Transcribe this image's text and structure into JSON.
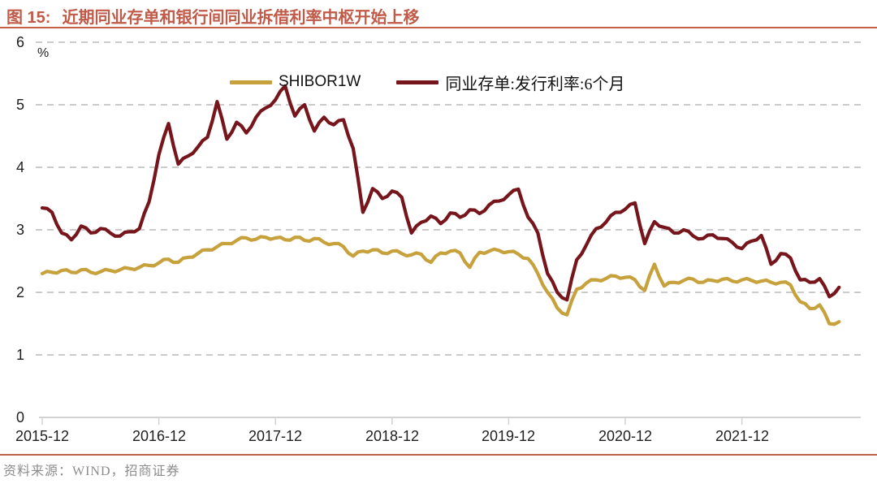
{
  "header": {
    "figure_label": "图 15:",
    "title": "近期同业存单和银行间同业拆借利率中枢开始上移"
  },
  "footer": {
    "source": "资料来源：WIND，招商证券"
  },
  "colors": {
    "accent": "#c15a48",
    "rule": "#c3604a",
    "shibor_line": "#c6a13c",
    "ncd_line": "#76151b",
    "gridline": "#cbcbcb",
    "axis_line": "#d2d2d2",
    "tick_text": "#1f1f1f",
    "source_text": "#8c8c8c"
  },
  "chart_data": {
    "type": "line",
    "title": "近期同业存单和银行间同业拆借利率中枢开始上移",
    "xlabel": "",
    "ylabel": "%",
    "unit": "%",
    "ylim": [
      0,
      6
    ],
    "yticks": [
      "0",
      "1",
      "2",
      "3",
      "4",
      "5",
      "6"
    ],
    "xticks": [
      "2015-12",
      "2016-12",
      "2017-12",
      "2018-12",
      "2019-12",
      "2020-12",
      "2021-12"
    ],
    "x_start": "2015-12",
    "x_end": "2022-10",
    "x_step_months": 1,
    "grid": "horizontal-dashed",
    "legend_position": "top-center",
    "series": [
      {
        "name": "SHIBOR1W",
        "color": "#c6a13c",
        "values": [
          2.3,
          2.32,
          2.35,
          2.32,
          2.36,
          2.32,
          2.33,
          2.35,
          2.36,
          2.38,
          2.4,
          2.43,
          2.47,
          2.53,
          2.48,
          2.56,
          2.62,
          2.68,
          2.73,
          2.78,
          2.83,
          2.87,
          2.85,
          2.88,
          2.87,
          2.84,
          2.88,
          2.83,
          2.86,
          2.8,
          2.78,
          2.73,
          2.58,
          2.66,
          2.68,
          2.63,
          2.66,
          2.62,
          2.6,
          2.61,
          2.48,
          2.63,
          2.66,
          2.63,
          2.4,
          2.64,
          2.66,
          2.67,
          2.65,
          2.61,
          2.54,
          2.3,
          2.0,
          1.75,
          1.64,
          2.05,
          2.15,
          2.2,
          2.22,
          2.26,
          2.24,
          2.2,
          2.03,
          2.45,
          2.1,
          2.16,
          2.19,
          2.21,
          2.16,
          2.19,
          2.21,
          2.18,
          2.2,
          2.19,
          2.18,
          2.16,
          2.16,
          2.12,
          1.85,
          1.74,
          1.8,
          1.5,
          1.53
        ]
      },
      {
        "name": "同业存单:发行利率:6个月",
        "color": "#76151b",
        "values": [
          3.35,
          3.28,
          2.95,
          2.84,
          3.06,
          2.95,
          3.02,
          2.95,
          2.9,
          2.97,
          3.02,
          3.45,
          4.2,
          4.7,
          4.05,
          4.18,
          4.32,
          4.48,
          5.05,
          4.45,
          4.72,
          4.55,
          4.8,
          4.95,
          5.08,
          5.3,
          4.82,
          5.0,
          4.58,
          4.8,
          4.68,
          4.76,
          4.3,
          3.28,
          3.66,
          3.5,
          3.62,
          3.52,
          2.95,
          3.12,
          3.22,
          3.1,
          3.27,
          3.2,
          3.32,
          3.26,
          3.4,
          3.46,
          3.56,
          3.65,
          3.2,
          2.95,
          2.3,
          2.0,
          1.88,
          2.52,
          2.76,
          3.02,
          3.12,
          3.28,
          3.33,
          3.43,
          2.78,
          3.13,
          3.04,
          2.95,
          3.0,
          2.9,
          2.86,
          2.92,
          2.86,
          2.8,
          2.7,
          2.82,
          2.91,
          2.45,
          2.62,
          2.55,
          2.2,
          2.16,
          2.22,
          1.93,
          2.08
        ]
      }
    ]
  }
}
